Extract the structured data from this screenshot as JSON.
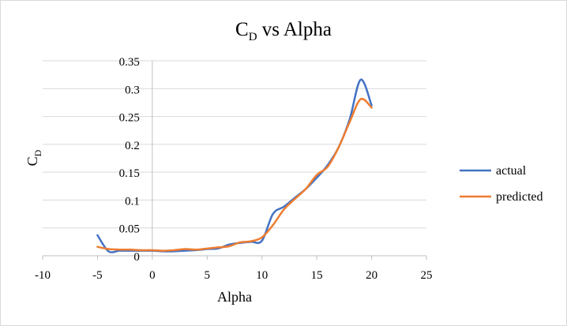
{
  "chart_data": {
    "type": "line",
    "title": {
      "main": "C",
      "sub": "D",
      "rest": " vs Alpha"
    },
    "xlabel": "Alpha",
    "ylabel": {
      "main": "C",
      "sub": "D"
    },
    "xlim": [
      -10,
      25
    ],
    "ylim": [
      0,
      0.35
    ],
    "xticks": [
      -10,
      -5,
      0,
      5,
      10,
      15,
      20,
      25
    ],
    "yticks": [
      0,
      0.05,
      0.1,
      0.15,
      0.2,
      0.25,
      0.3,
      0.35
    ],
    "ytick_labels": [
      "0",
      "0.05",
      "0.1",
      "0.15",
      "0.2",
      "0.25",
      "0.3",
      "0.35"
    ],
    "grid": "horizontal",
    "legend_position": "right",
    "series": [
      {
        "name": "actual",
        "color": "#4472C4",
        "x": [
          -5,
          -4,
          -3,
          -2,
          -1,
          0,
          1,
          2,
          3,
          4,
          5,
          6,
          7,
          8,
          9,
          10,
          11,
          12,
          13,
          14,
          15,
          16,
          17,
          18,
          19,
          20
        ],
        "y": [
          0.037,
          0.008,
          0.009,
          0.009,
          0.009,
          0.009,
          0.008,
          0.008,
          0.009,
          0.01,
          0.012,
          0.013,
          0.02,
          0.023,
          0.025,
          0.027,
          0.075,
          0.088,
          0.104,
          0.12,
          0.14,
          0.163,
          0.195,
          0.245,
          0.316,
          0.27
        ]
      },
      {
        "name": "predicted",
        "color": "#ED7D31",
        "x": [
          -5,
          -4,
          -3,
          -2,
          -1,
          0,
          1,
          2,
          3,
          4,
          5,
          6,
          7,
          8,
          9,
          10,
          11,
          12,
          13,
          14,
          15,
          16,
          17,
          18,
          19,
          20
        ],
        "y": [
          0.016,
          0.012,
          0.011,
          0.011,
          0.01,
          0.01,
          0.009,
          0.01,
          0.012,
          0.011,
          0.013,
          0.015,
          0.017,
          0.024,
          0.026,
          0.033,
          0.055,
          0.083,
          0.102,
          0.12,
          0.145,
          0.16,
          0.195,
          0.24,
          0.281,
          0.266
        ]
      }
    ]
  }
}
